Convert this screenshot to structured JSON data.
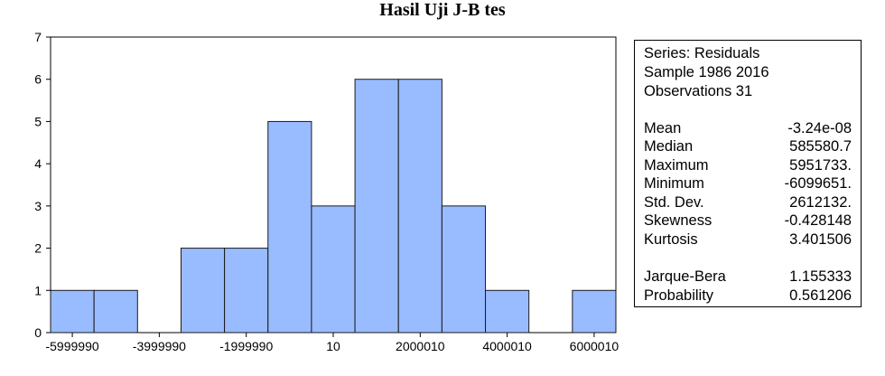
{
  "chart_data": {
    "type": "bar",
    "title": "Hasil Uji J-B tes",
    "bin_width": 1000000,
    "bin_starts": [
      -6499990,
      -5499990,
      -4499990,
      -3499990,
      -2499990,
      -1499990,
      -499990,
      500010,
      1500010,
      2500010,
      3500010,
      4500010,
      5500010
    ],
    "values": [
      1,
      1,
      0,
      2,
      2,
      5,
      3,
      6,
      6,
      3,
      1,
      0,
      1
    ],
    "xlim": [
      -6499990,
      6500010
    ],
    "ylim": [
      0,
      7
    ],
    "yticks": [
      0,
      1,
      2,
      3,
      4,
      5,
      6,
      7
    ],
    "xticks": [
      -5999990,
      -3999990,
      -1999990,
      10,
      2000010,
      4000010,
      6000010
    ],
    "xtick_labels": [
      "-5999990",
      "-3999990",
      "-1999990",
      "10",
      "2000010",
      "4000010",
      "6000010"
    ],
    "xlabel": "",
    "ylabel": "",
    "grid": false,
    "bar_color": "#99bbff",
    "edge_color": "#1a1a1a"
  },
  "stats": {
    "header": [
      "Series: Residuals",
      "Sample 1986 2016",
      "Observations 31"
    ],
    "rows": [
      {
        "label": "Mean",
        "value": "-3.24e-08"
      },
      {
        "label": "Median",
        "value": "585580.7"
      },
      {
        "label": "Maximum",
        "value": "5951733."
      },
      {
        "label": "Minimum",
        "value": "-6099651."
      },
      {
        "label": "Std. Dev.",
        "value": "2612132."
      },
      {
        "label": "Skewness",
        "value": "-0.428148"
      },
      {
        "label": "Kurtosis",
        "value": "3.401506"
      }
    ],
    "test_rows": [
      {
        "label": "Jarque-Bera",
        "value": "1.155333"
      },
      {
        "label": "Probability",
        "value": "0.561206"
      }
    ]
  }
}
